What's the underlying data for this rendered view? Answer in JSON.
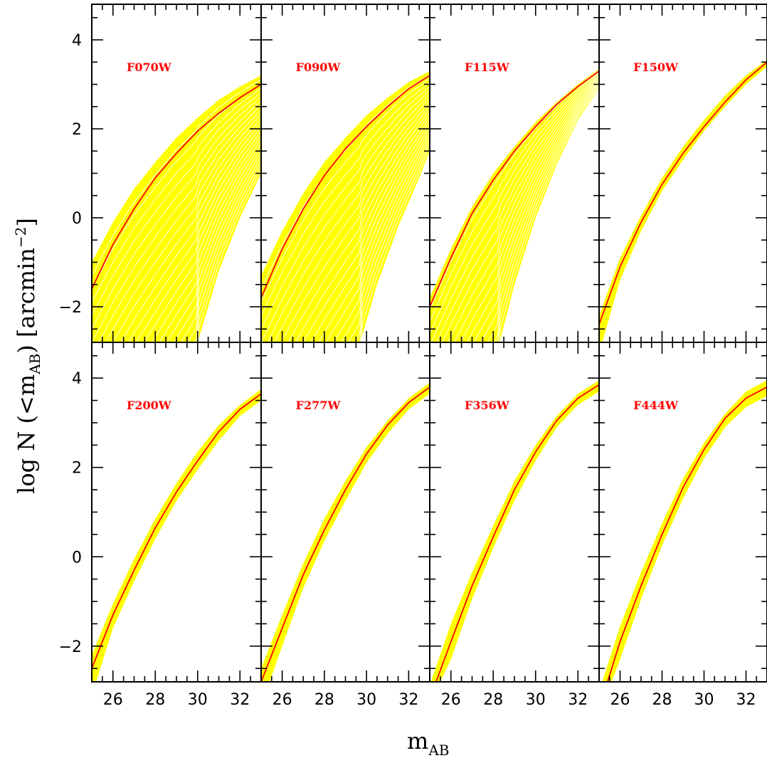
{
  "chart_data": {
    "type": "line",
    "title": "",
    "xlabel": {
      "main": "m",
      "sub": "AB"
    },
    "ylabel": {
      "pre": "log N (<m",
      "sub": "AB",
      "post": ") [arcmin",
      "sup": "−2",
      "end": "]"
    },
    "xlim": [
      25,
      33
    ],
    "ylim": [
      -2.8,
      4.8
    ],
    "xticks": [
      26,
      28,
      30,
      32
    ],
    "yticks": [
      -2,
      0,
      2,
      4
    ],
    "colors": {
      "median": "#ff0000",
      "band": "#ffff00",
      "frame": "#000000"
    },
    "panels": [
      {
        "label": "F070W",
        "median": {
          "x": [
            25,
            26,
            27,
            28,
            29,
            30,
            31,
            32,
            33
          ],
          "y": [
            -1.6,
            -0.6,
            0.2,
            0.9,
            1.45,
            1.95,
            2.35,
            2.7,
            3.0
          ]
        },
        "band_upper": [
          -1.0,
          -0.1,
          0.65,
          1.25,
          1.8,
          2.25,
          2.65,
          2.95,
          3.2
        ],
        "band_lower": {
          "x": [
            30.0,
            31,
            32,
            33
          ],
          "y": [
            -2.8,
            -1.2,
            0.0,
            1.0
          ]
        },
        "fan_count": 22
      },
      {
        "label": "F090W",
        "median": {
          "x": [
            25,
            26,
            27,
            28,
            29,
            30,
            31,
            32,
            33
          ],
          "y": [
            -1.8,
            -0.7,
            0.2,
            0.95,
            1.55,
            2.05,
            2.5,
            2.9,
            3.2
          ]
        },
        "band_upper": [
          -1.3,
          -0.3,
          0.55,
          1.25,
          1.8,
          2.3,
          2.7,
          3.05,
          3.3
        ],
        "band_lower": {
          "x": [
            29.7,
            30.5,
            31.5,
            32.5,
            33
          ],
          "y": [
            -2.8,
            -1.5,
            -0.2,
            0.9,
            1.5
          ]
        },
        "fan_count": 20
      },
      {
        "label": "F115W",
        "median": {
          "x": [
            25,
            26,
            27,
            28,
            29,
            30,
            31,
            32,
            33
          ],
          "y": [
            -2.0,
            -0.9,
            0.1,
            0.85,
            1.5,
            2.05,
            2.55,
            2.95,
            3.3
          ]
        },
        "band_upper": [
          -1.8,
          -0.7,
          0.25,
          1.0,
          1.6,
          2.15,
          2.6,
          3.0,
          3.35
        ],
        "band_lower": {
          "x": [
            28.3,
            29,
            30,
            31,
            32,
            33
          ],
          "y": [
            -2.8,
            -1.5,
            0.0,
            1.2,
            2.2,
            2.9
          ]
        },
        "fan_count": 16
      },
      {
        "label": "F150W",
        "median": {
          "x": [
            25,
            26,
            27,
            28,
            29,
            30,
            31,
            32,
            33
          ],
          "y": [
            -2.4,
            -1.1,
            -0.1,
            0.75,
            1.45,
            2.05,
            2.6,
            3.1,
            3.5
          ]
        },
        "band_upper": [
          -2.2,
          -0.9,
          0.05,
          0.9,
          1.6,
          2.2,
          2.75,
          3.2,
          3.55
        ],
        "band_lower": {
          "x": [
            25.15,
            26,
            27,
            28,
            29,
            30,
            31,
            32,
            33
          ],
          "y": [
            -2.8,
            -1.4,
            -0.3,
            0.6,
            1.3,
            1.95,
            2.5,
            3.0,
            3.4
          ]
        },
        "fan_count": 0
      },
      {
        "label": "F200W",
        "median": {
          "x": [
            25,
            26,
            27,
            28,
            29,
            30,
            31,
            32,
            33
          ],
          "y": [
            -2.5,
            -1.3,
            -0.3,
            0.65,
            1.45,
            2.15,
            2.8,
            3.3,
            3.65
          ]
        },
        "band_upper": [
          -2.2,
          -1.05,
          -0.05,
          0.85,
          1.65,
          2.35,
          2.95,
          3.4,
          3.75
        ],
        "band_lower": {
          "x": [
            25.2,
            26,
            27,
            28,
            29,
            30,
            31,
            32,
            33
          ],
          "y": [
            -2.8,
            -1.6,
            -0.55,
            0.4,
            1.25,
            1.95,
            2.6,
            3.15,
            3.5
          ]
        },
        "fan_count": 0
      },
      {
        "label": "F277W",
        "median": {
          "x": [
            25,
            26,
            27,
            28,
            29,
            30,
            31,
            32,
            33
          ],
          "y": [
            -2.8,
            -1.6,
            -0.4,
            0.6,
            1.5,
            2.3,
            2.95,
            3.45,
            3.8
          ]
        },
        "band_upper": [
          -2.5,
          -1.3,
          -0.15,
          0.85,
          1.7,
          2.45,
          3.05,
          3.55,
          3.9
        ],
        "band_lower": {
          "x": [
            25.4,
            26,
            27,
            28,
            29,
            30,
            31,
            32,
            33
          ],
          "y": [
            -2.8,
            -2.0,
            -0.7,
            0.35,
            1.25,
            2.1,
            2.75,
            3.3,
            3.65
          ]
        },
        "fan_count": 0
      },
      {
        "label": "F356W",
        "median": {
          "x": [
            25.3,
            26,
            27,
            28,
            29,
            30,
            31,
            32,
            33
          ],
          "y": [
            -2.8,
            -1.9,
            -0.65,
            0.45,
            1.5,
            2.35,
            3.05,
            3.55,
            3.85
          ]
        },
        "band_upper": {
          "x": [
            25.05,
            26,
            27,
            28,
            29,
            30,
            31,
            32,
            33
          ],
          "y": [
            -2.8,
            -1.5,
            -0.35,
            0.7,
            1.7,
            2.5,
            3.15,
            3.65,
            3.95
          ]
        },
        "band_lower": {
          "x": [
            25.5,
            26,
            27,
            28,
            29,
            30,
            31,
            32,
            33
          ],
          "y": [
            -2.8,
            -2.3,
            -0.95,
            0.2,
            1.25,
            2.15,
            2.9,
            3.4,
            3.7
          ]
        },
        "fan_count": 0
      },
      {
        "label": "F444W",
        "median": {
          "x": [
            25.4,
            26,
            27,
            28,
            29,
            30,
            31,
            32,
            33
          ],
          "y": [
            -2.8,
            -1.9,
            -0.65,
            0.5,
            1.55,
            2.4,
            3.1,
            3.55,
            3.8
          ]
        },
        "band_upper": {
          "x": [
            25.15,
            26,
            27,
            28,
            29,
            30,
            31,
            32,
            33
          ],
          "y": [
            -2.8,
            -1.55,
            -0.35,
            0.75,
            1.75,
            2.55,
            3.2,
            3.7,
            3.95
          ]
        },
        "band_lower": {
          "x": [
            25.6,
            26,
            27,
            28,
            29,
            30,
            31,
            32,
            33
          ],
          "y": [
            -2.8,
            -2.3,
            -0.95,
            0.25,
            1.3,
            2.2,
            2.9,
            3.35,
            3.6
          ]
        },
        "fan_count": 0
      }
    ]
  }
}
